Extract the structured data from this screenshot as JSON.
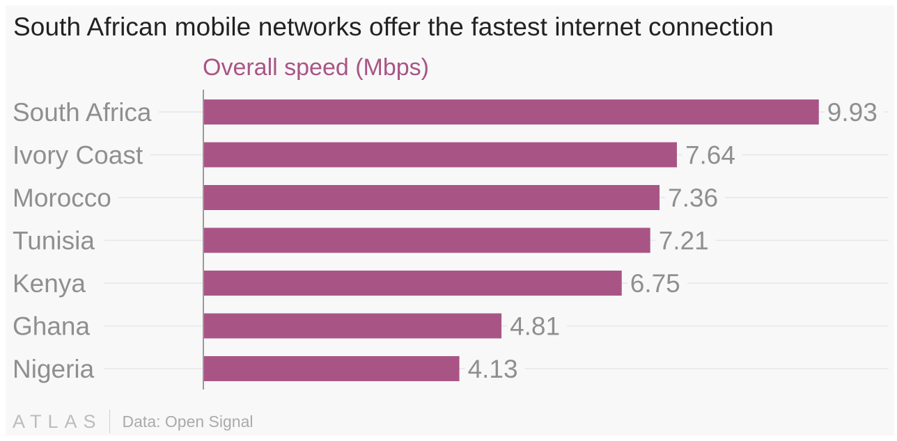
{
  "title": "South African mobile networks offer the fastest internet connection",
  "chart_data": {
    "type": "bar",
    "orientation": "horizontal",
    "title": "South African mobile networks offer the fastest internet connection",
    "series_label": "Overall speed (Mbps)",
    "categories": [
      "South Africa",
      "Ivory Coast",
      "Morocco",
      "Tunisia",
      "Kenya",
      "Ghana",
      "Nigeria"
    ],
    "values": [
      9.93,
      7.64,
      7.36,
      7.21,
      6.75,
      4.81,
      4.13
    ],
    "value_labels": [
      "9.93",
      "7.64",
      "7.36",
      "7.21",
      "6.75",
      "4.81",
      "4.13"
    ],
    "xlim": [
      0,
      10
    ],
    "grid": true,
    "bar_color": "#a85586"
  },
  "footer": {
    "logo": "ATLAS",
    "source": "Data: Open Signal"
  }
}
